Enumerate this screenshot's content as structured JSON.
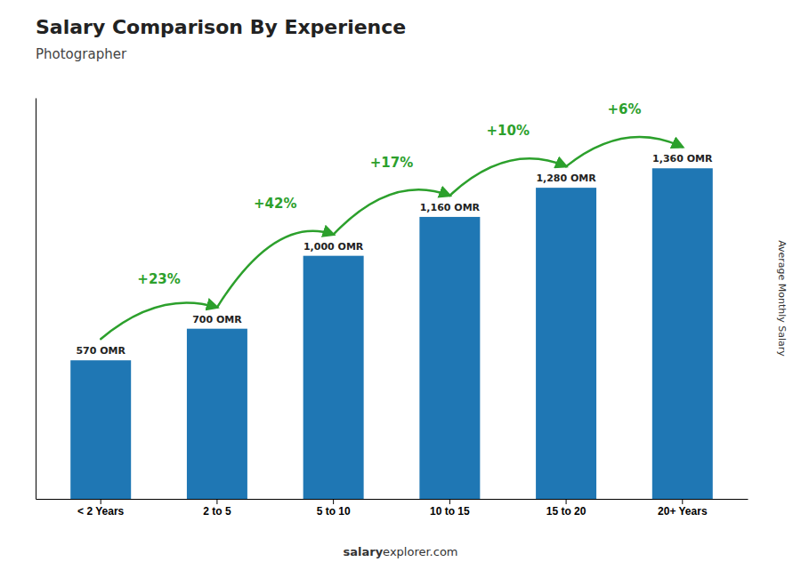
{
  "chart_data": {
    "type": "bar",
    "title": "Salary Comparison By Experience",
    "subtitle": "Photographer",
    "categories": [
      "< 2 Years",
      "2 to 5",
      "5 to 10",
      "10 to 15",
      "15 to 20",
      "20+ Years"
    ],
    "values": [
      570,
      700,
      1000,
      1160,
      1280,
      1360
    ],
    "value_labels": [
      "570 OMR",
      "700 OMR",
      "1,000 OMR",
      "1,160 OMR",
      "1,280 OMR",
      "1,360 OMR"
    ],
    "data_labels": true,
    "annotations": [
      "+23%",
      "+42%",
      "+17%",
      "+10%",
      "+6%"
    ],
    "y_label": "Average Monthly Salary",
    "footer": [
      "salary",
      "explorer.com"
    ],
    "ylim": [
      0,
      1650
    ],
    "tick_labels": "x",
    "grid": false
  }
}
